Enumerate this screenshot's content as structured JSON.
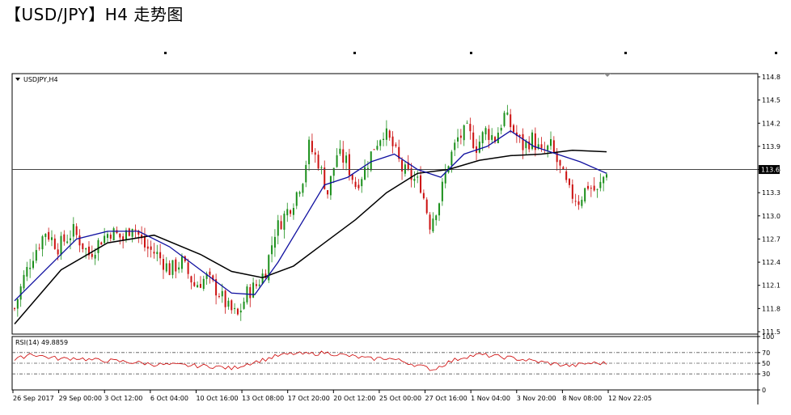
{
  "page": {
    "title": "【USD/JPY】H4 走势图"
  },
  "colors": {
    "bull_candle": "#1a8f1a",
    "bear_candle": "#cc1111",
    "fast_ma": "#1010a0",
    "slow_ma": "#000000",
    "rsi_line": "#cc0000",
    "grid_frame": "#000000",
    "price_marker_bg": "#000000"
  },
  "chart_data": [
    {
      "type": "candlestick",
      "symbol_label": "USDJPY,H4",
      "title": "",
      "y_range": [
        111.5,
        114.8
      ],
      "y_ticks": [
        "114.8",
        "114.5",
        "114.2",
        "113.9",
        "113.6",
        "113.3",
        "113.0",
        "112.7",
        "112.4",
        "112.1",
        "111.8",
        "111.5"
      ],
      "current_price_label": "113.6",
      "current_price": 113.6,
      "x_labels": [
        "26 Sep 2017",
        "29 Sep 00:00",
        "3 Oct 12:00",
        "6 Oct 04:00",
        "10 Oct 16:00",
        "13 Oct 08:00",
        "17 Oct 20:00",
        "20 Oct 12:00",
        "25 Oct 00:00",
        "27 Oct 16:00",
        "1 Nov 04:00",
        "3 Nov 20:00",
        "8 Nov 08:00",
        "12 Nov 22:05"
      ],
      "close_path": [
        [
          0,
          111.8
        ],
        [
          6,
          112.2
        ],
        [
          12,
          112.5
        ],
        [
          20,
          112.8
        ],
        [
          28,
          112.6
        ],
        [
          38,
          112.8
        ],
        [
          48,
          112.5
        ],
        [
          56,
          112.7
        ],
        [
          62,
          112.8
        ],
        [
          70,
          112.7
        ],
        [
          76,
          112.9
        ],
        [
          84,
          112.6
        ],
        [
          92,
          112.5
        ],
        [
          100,
          112.3
        ],
        [
          108,
          112.4
        ],
        [
          116,
          112.1
        ],
        [
          124,
          112.2
        ],
        [
          132,
          112.0
        ],
        [
          138,
          111.8
        ],
        [
          144,
          111.7
        ],
        [
          150,
          112.0
        ],
        [
          156,
          112.1
        ],
        [
          162,
          112.3
        ],
        [
          168,
          112.8
        ],
        [
          174,
          113.0
        ],
        [
          180,
          113.2
        ],
        [
          186,
          113.5
        ],
        [
          190,
          113.9
        ],
        [
          196,
          113.7
        ],
        [
          202,
          113.3
        ],
        [
          208,
          113.8
        ],
        [
          214,
          113.7
        ],
        [
          220,
          113.4
        ],
        [
          226,
          113.6
        ],
        [
          232,
          113.9
        ],
        [
          238,
          114.1
        ],
        [
          244,
          113.9
        ],
        [
          250,
          113.6
        ],
        [
          256,
          113.5
        ],
        [
          262,
          113.4
        ],
        [
          268,
          112.9
        ],
        [
          274,
          113.2
        ],
        [
          280,
          113.7
        ],
        [
          286,
          114.0
        ],
        [
          292,
          114.1
        ],
        [
          298,
          113.9
        ],
        [
          304,
          114.1
        ],
        [
          310,
          114.0
        ],
        [
          316,
          114.3
        ],
        [
          322,
          114.1
        ],
        [
          328,
          113.9
        ],
        [
          334,
          114.0
        ],
        [
          340,
          113.8
        ],
        [
          346,
          113.9
        ],
        [
          352,
          113.6
        ],
        [
          358,
          113.3
        ],
        [
          364,
          113.2
        ],
        [
          370,
          113.4
        ],
        [
          376,
          113.3
        ],
        [
          382,
          113.6
        ]
      ],
      "fast_ma": [
        [
          0,
          111.9
        ],
        [
          20,
          112.3
        ],
        [
          40,
          112.7
        ],
        [
          60,
          112.8
        ],
        [
          80,
          112.8
        ],
        [
          100,
          112.6
        ],
        [
          120,
          112.3
        ],
        [
          140,
          112.0
        ],
        [
          155,
          111.98
        ],
        [
          170,
          112.4
        ],
        [
          185,
          112.9
        ],
        [
          200,
          113.4
        ],
        [
          215,
          113.5
        ],
        [
          230,
          113.7
        ],
        [
          245,
          113.8
        ],
        [
          260,
          113.6
        ],
        [
          275,
          113.5
        ],
        [
          290,
          113.8
        ],
        [
          305,
          113.9
        ],
        [
          320,
          114.1
        ],
        [
          335,
          113.9
        ],
        [
          350,
          113.8
        ],
        [
          365,
          113.7
        ],
        [
          382,
          113.55
        ]
      ],
      "slow_ma": [
        [
          0,
          111.6
        ],
        [
          30,
          112.3
        ],
        [
          60,
          112.65
        ],
        [
          90,
          112.75
        ],
        [
          120,
          112.5
        ],
        [
          140,
          112.28
        ],
        [
          160,
          112.2
        ],
        [
          180,
          112.35
        ],
        [
          200,
          112.65
        ],
        [
          220,
          112.95
        ],
        [
          240,
          113.3
        ],
        [
          260,
          113.55
        ],
        [
          280,
          113.6
        ],
        [
          300,
          113.72
        ],
        [
          320,
          113.78
        ],
        [
          340,
          113.8
        ],
        [
          360,
          113.85
        ],
        [
          382,
          113.83
        ]
      ]
    },
    {
      "type": "line",
      "title": "",
      "indicator_label": "RSI(14) 49.8859",
      "y_range": [
        0,
        100
      ],
      "y_ticks": [
        "100",
        "70",
        "50",
        "30",
        "0"
      ],
      "levels": [
        70,
        50,
        30
      ],
      "values": [
        [
          0,
          55
        ],
        [
          10,
          68
        ],
        [
          20,
          62
        ],
        [
          30,
          58
        ],
        [
          40,
          60
        ],
        [
          50,
          56
        ],
        [
          60,
          55
        ],
        [
          70,
          53
        ],
        [
          80,
          51
        ],
        [
          90,
          48
        ],
        [
          100,
          47
        ],
        [
          110,
          46
        ],
        [
          120,
          45
        ],
        [
          130,
          44
        ],
        [
          140,
          40
        ],
        [
          150,
          49
        ],
        [
          160,
          56
        ],
        [
          170,
          64
        ],
        [
          180,
          68
        ],
        [
          190,
          67
        ],
        [
          200,
          70
        ],
        [
          210,
          66
        ],
        [
          220,
          62
        ],
        [
          230,
          58
        ],
        [
          240,
          60
        ],
        [
          250,
          54
        ],
        [
          260,
          46
        ],
        [
          270,
          38
        ],
        [
          280,
          52
        ],
        [
          290,
          62
        ],
        [
          300,
          66
        ],
        [
          310,
          63
        ],
        [
          320,
          60
        ],
        [
          330,
          56
        ],
        [
          340,
          52
        ],
        [
          350,
          48
        ],
        [
          360,
          45
        ],
        [
          370,
          50
        ],
        [
          382,
          50
        ]
      ]
    }
  ]
}
